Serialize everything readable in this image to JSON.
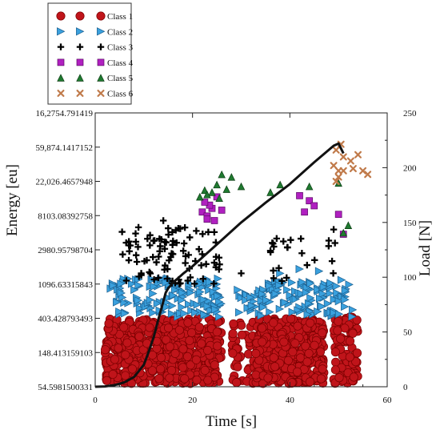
{
  "chart_data": {
    "type": "scatter",
    "xlabel": "Time [s]",
    "ylabel_left": "Energy [eu]",
    "ylabel_right": "Load [N]",
    "xlim": [
      0,
      60
    ],
    "x_ticks": [
      "0",
      "20",
      "40",
      "60"
    ],
    "y_left_scale": "log",
    "y_left_ticks": [
      "54.5981500331",
      "148.413159103",
      "403.428793493",
      "1096.63315843",
      "2980.95798704",
      "8103.08392758",
      "22,026.4657948",
      "59,874.1417152",
      "16,2754.791419"
    ],
    "y_left_tick_values": [
      54.5981500331,
      148.413159103,
      403.428793493,
      1096.63315843,
      2980.95798704,
      8103.08392758,
      22026.4657948,
      59874.1417152,
      162754.791419
    ],
    "ylim_right": [
      0,
      250
    ],
    "y_right_ticks": [
      "0",
      "50",
      "100",
      "150",
      "200",
      "250"
    ],
    "grid": false,
    "legend_position": "top-left",
    "series": [
      {
        "name": "Class 1",
        "marker": "circle",
        "color": "#c0141a",
        "edge": "#7a0000",
        "clusters": [
          [
            2,
            26,
            60,
            400,
            560
          ],
          [
            28,
            35,
            60,
            380,
            70
          ],
          [
            33,
            47,
            60,
            400,
            420
          ],
          [
            49,
            54,
            60,
            420,
            90
          ]
        ]
      },
      {
        "name": "Class 2",
        "marker": "triangle-right",
        "color": "#3aa0dd",
        "edge": "#1b5f8f",
        "clusters": [
          [
            3,
            26,
            420,
            1300,
            140
          ],
          [
            29,
            37,
            430,
            1000,
            30
          ],
          [
            34,
            49,
            430,
            1200,
            90
          ],
          [
            49,
            53,
            420,
            1400,
            20
          ]
        ],
        "points": [
          [
            42,
            1700
          ],
          [
            46,
            1600
          ],
          [
            38,
            1500
          ]
        ]
      },
      {
        "name": "Class 3",
        "marker": "plus",
        "color": "#000000",
        "edge": "#000000",
        "clusters": [
          [
            5,
            26,
            1100,
            5800,
            90
          ],
          [
            36,
            50,
            1100,
            4500,
            22
          ]
        ],
        "points": [
          [
            14,
            7000
          ],
          [
            15,
            5600
          ],
          [
            49,
            5400
          ],
          [
            48,
            3900
          ],
          [
            30,
            1500
          ],
          [
            36,
            2900
          ]
        ]
      },
      {
        "name": "Class 4",
        "marker": "square",
        "color": "#b020c0",
        "edge": "#5c0a66",
        "points": [
          [
            22,
            9000
          ],
          [
            23,
            8000
          ],
          [
            24,
            10000
          ],
          [
            25,
            14000
          ],
          [
            23.5,
            11000
          ],
          [
            24.5,
            7000
          ],
          [
            26,
            9500
          ],
          [
            22.5,
            12000
          ],
          [
            23,
            7300
          ],
          [
            42,
            14500
          ],
          [
            43,
            9000
          ],
          [
            44,
            12500
          ],
          [
            45,
            10800
          ],
          [
            50,
            8400
          ],
          [
            51,
            4700
          ]
        ]
      },
      {
        "name": "Class 5",
        "marker": "triangle-up",
        "color": "#1f7a30",
        "edge": "#0d3d14",
        "points": [
          [
            21.5,
            14000
          ],
          [
            22.5,
            17000
          ],
          [
            24,
            16000
          ],
          [
            25,
            20000
          ],
          [
            26,
            27000
          ],
          [
            27,
            17500
          ],
          [
            28,
            25000
          ],
          [
            30,
            19000
          ],
          [
            36,
            16000
          ],
          [
            38,
            20000
          ],
          [
            44,
            19000
          ],
          [
            50,
            21000
          ],
          [
            52,
            6100
          ],
          [
            51,
            4900
          ],
          [
            25.5,
            13500
          ],
          [
            23,
            15000
          ]
        ]
      },
      {
        "name": "Class 6",
        "marker": "x",
        "color": "#c07a4a",
        "edge": "#7a4020",
        "points": [
          [
            49.5,
            55000
          ],
          [
            50.5,
            65000
          ],
          [
            51,
            45000
          ],
          [
            49,
            35000
          ],
          [
            50,
            30000
          ],
          [
            52.5,
            40000
          ],
          [
            54,
            48000
          ],
          [
            55,
            30000
          ],
          [
            56,
            27000
          ],
          [
            53,
            32000
          ],
          [
            50,
            25000
          ],
          [
            49.5,
            22000
          ],
          [
            51,
            30000
          ]
        ]
      },
      {
        "name": "Load",
        "type": "line",
        "axis": "right",
        "color": "#111111",
        "x": [
          0,
          2,
          4,
          6,
          8,
          10,
          11,
          12,
          13,
          14,
          14.5,
          15,
          16,
          18,
          20,
          22,
          25,
          30,
          35,
          40,
          45,
          49,
          50,
          51
        ],
        "y": [
          0,
          0.3,
          1.5,
          4,
          9,
          20,
          32,
          45,
          62,
          78,
          86,
          90,
          95,
          103,
          110,
          118,
          130,
          150,
          168,
          185,
          205,
          220,
          222,
          213
        ]
      }
    ]
  },
  "legend": {
    "entries": [
      "Class 1",
      "Class 2",
      "Class 3",
      "Class 4",
      "Class 5",
      "Class 6"
    ]
  }
}
